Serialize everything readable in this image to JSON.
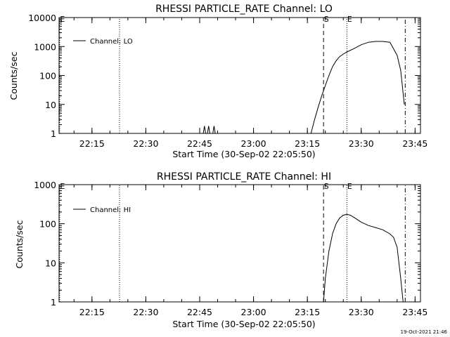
{
  "footer": {
    "timestamp": "19-Oct-2021 21:46"
  },
  "chart_data": [
    {
      "type": "line",
      "title": "RHESSI PARTICLE_RATE Channel: LO",
      "xlabel": "Start Time (30-Sep-02 22:05:50)",
      "ylabel": "Counts/sec",
      "xlim": [
        "22:05:50",
        "23:46:30"
      ],
      "ylim": [
        1,
        10000
      ],
      "yscale": "log",
      "x_tick_labels": [
        "22:15",
        "22:30",
        "22:45",
        "23:00",
        "23:15",
        "23:30",
        "23:45"
      ],
      "y_tick_labels": [
        "1",
        "10",
        "100",
        "1000",
        "10000"
      ],
      "grid": false,
      "legend": {
        "position": "top-left",
        "entries": [
          "Channel: LO"
        ]
      },
      "markers": [
        {
          "label": "E",
          "time": "22:06:00",
          "style": "dotted"
        },
        {
          "label": "",
          "time": "22:22:40",
          "style": "dotted"
        },
        {
          "label": "S",
          "time": "23:19:30",
          "style": "dashed"
        },
        {
          "label": "E",
          "time": "23:26:00",
          "style": "dotted"
        },
        {
          "label": "",
          "time": "23:42:15",
          "style": "dash-dot"
        }
      ],
      "series": [
        {
          "name": "Channel: LO",
          "color": "#000000",
          "x": [
            "22:05:50",
            "22:46:00",
            "22:46:20",
            "22:46:40",
            "22:47:10",
            "22:47:30",
            "22:47:50",
            "22:48:40",
            "22:49:00",
            "22:49:20",
            "23:16:00",
            "23:17:00",
            "23:18:00",
            "23:19:00",
            "23:20:00",
            "23:21:00",
            "23:22:00",
            "23:23:00",
            "23:24:00",
            "23:25:00",
            "23:26:00",
            "23:28:00",
            "23:30:00",
            "23:32:00",
            "23:34:00",
            "23:36:00",
            "23:38:00",
            "23:40:00",
            "23:41:00",
            "23:42:00"
          ],
          "y": [
            1,
            1,
            1.8,
            1,
            1,
            1.8,
            1,
            1,
            1.8,
            1,
            1,
            3,
            8,
            20,
            45,
            100,
            200,
            320,
            450,
            550,
            650,
            850,
            1150,
            1400,
            1500,
            1500,
            1400,
            500,
            150,
            10
          ]
        }
      ]
    },
    {
      "type": "line",
      "title": "RHESSI PARTICLE_RATE Channel: HI",
      "xlabel": "Start Time (30-Sep-02 22:05:50)",
      "ylabel": "Counts/sec",
      "xlim": [
        "22:05:50",
        "23:46:30"
      ],
      "ylim": [
        1,
        1000
      ],
      "yscale": "log",
      "x_tick_labels": [
        "22:15",
        "22:30",
        "22:45",
        "23:00",
        "23:15",
        "23:30",
        "23:45"
      ],
      "y_tick_labels": [
        "1",
        "10",
        "100",
        "1000"
      ],
      "grid": false,
      "legend": {
        "position": "top-left",
        "entries": [
          "Channel: HI"
        ]
      },
      "markers": [
        {
          "label": "E",
          "time": "22:06:00",
          "style": "dotted"
        },
        {
          "label": "",
          "time": "22:22:40",
          "style": "dotted"
        },
        {
          "label": "S",
          "time": "23:19:30",
          "style": "dashed"
        },
        {
          "label": "E",
          "time": "23:26:00",
          "style": "dotted"
        },
        {
          "label": "",
          "time": "23:42:15",
          "style": "dash-dot"
        }
      ],
      "series": [
        {
          "name": "Channel: HI",
          "color": "#000000",
          "x": [
            "23:19:30",
            "23:20:00",
            "23:21:00",
            "23:22:00",
            "23:23:00",
            "23:24:00",
            "23:25:00",
            "23:26:00",
            "23:27:00",
            "23:28:00",
            "23:30:00",
            "23:32:00",
            "23:34:00",
            "23:36:00",
            "23:37:00",
            "23:38:00",
            "23:39:00",
            "23:40:00",
            "23:41:00",
            "23:41:40"
          ],
          "y": [
            1,
            4,
            20,
            55,
            100,
            140,
            165,
            175,
            165,
            145,
            110,
            90,
            80,
            70,
            62,
            55,
            45,
            25,
            4,
            1
          ]
        }
      ]
    }
  ]
}
